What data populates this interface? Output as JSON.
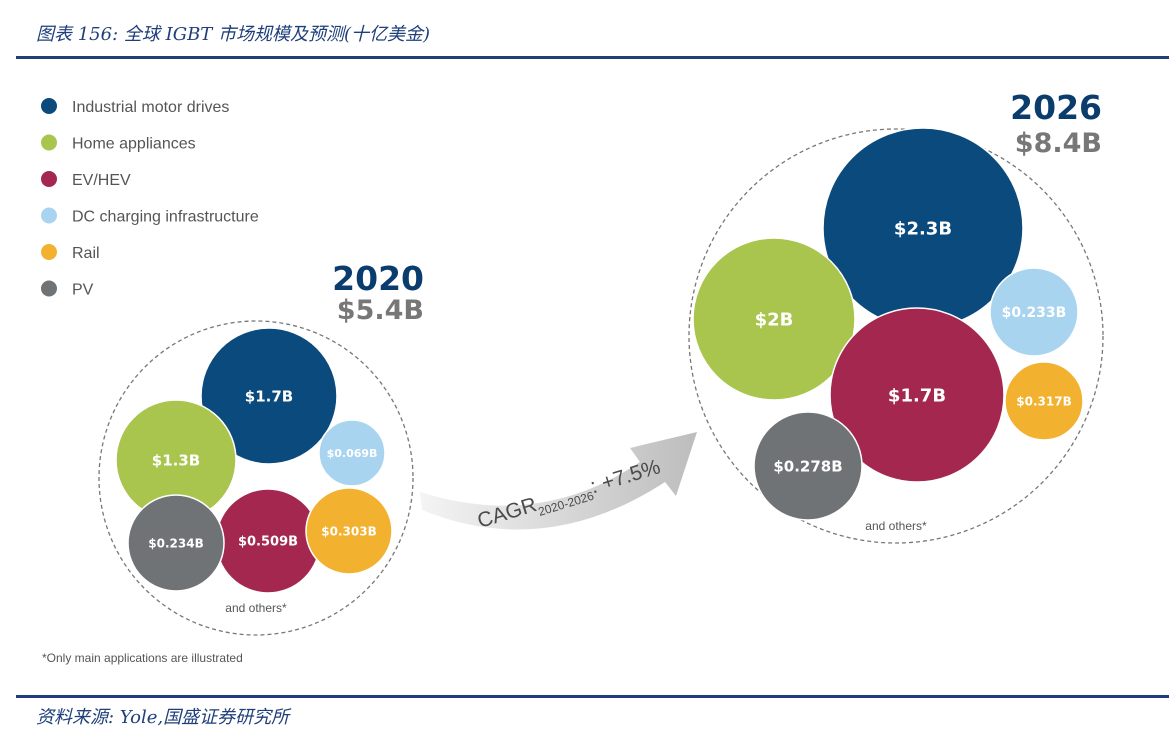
{
  "header": {
    "title": "图表 156:  全球 IGBT 市场规模及预测(十亿美金)"
  },
  "footer": {
    "source": "资料来源:  Yole,国盛证券研究所"
  },
  "chart_data": {
    "type": "bubble",
    "unit": "billion USD",
    "categories": [
      {
        "name": "Industrial motor drives",
        "color": "#0b4a7c"
      },
      {
        "name": "Home appliances",
        "color": "#a9c54e"
      },
      {
        "name": "EV/HEV",
        "color": "#a3274f"
      },
      {
        "name": "DC charging infrastructure",
        "color": "#a9d4f0"
      },
      {
        "name": "Rail",
        "color": "#f2b12e"
      },
      {
        "name": "PV",
        "color": "#707376"
      }
    ],
    "groups": [
      {
        "year": "2020",
        "total_label": "$5.4B",
        "values": [
          1.7,
          1.3,
          0.509,
          0.069,
          0.303,
          0.234
        ],
        "labels": [
          "$1.7B",
          "$1.3B",
          "$0.509B",
          "$0.069B",
          "$0.303B",
          "$0.234B"
        ],
        "others_label": "and others*"
      },
      {
        "year": "2026",
        "total_label": "$8.4B",
        "values": [
          2.3,
          2.0,
          1.7,
          0.233,
          0.317,
          0.278
        ],
        "labels": [
          "$2.3B",
          "$2B",
          "$1.7B",
          "$0.233B",
          "$0.317B",
          "$0.278B"
        ],
        "others_label": "and others*"
      }
    ],
    "cagr": {
      "prefix": "CAGR",
      "subscript": "2020-2026",
      "value": ": +7.5%"
    },
    "footnote": "*Only main applications are illustrated"
  }
}
